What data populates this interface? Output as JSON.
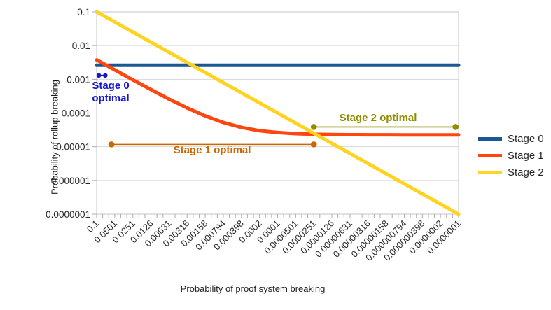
{
  "chart_data": {
    "type": "line",
    "title": "",
    "xlabel": "Probability of proof system breaking",
    "ylabel": "Probability of rollup breaking",
    "x_scale": "log",
    "y_scale": "log",
    "x_range": [
      0.1,
      1e-07
    ],
    "y_range": [
      0.1,
      1e-07
    ],
    "grid": "horizontal",
    "x_ticks": [
      "0.1",
      "0.0501",
      "0.0251",
      "0.0126",
      "0.00631",
      "0.00316",
      "0.00158",
      "0.000794",
      "0.000398",
      "0.0002",
      "0.0001",
      "0.0000501",
      "0.0000251",
      "0.0000126",
      "0.00000631",
      "0.00000316",
      "0.00000158",
      "0.000000794",
      "0.000000398",
      "0.0000002",
      "0.0000001"
    ],
    "y_ticks": [
      "0.1",
      "0.01",
      "0.001",
      "0.0001",
      "0.00001",
      "0.000001",
      "0.0000001"
    ],
    "series": [
      {
        "name": "Stage 0",
        "color": "#1a5795",
        "width": 5,
        "points": [
          [
            0.1,
            0.0026
          ],
          [
            1e-07,
            0.0026
          ]
        ]
      },
      {
        "name": "Stage 1",
        "color": "#fe4610",
        "width": 5,
        "points": [
          [
            0.1,
            0.00377
          ],
          [
            0.0501,
            0.0019
          ],
          [
            0.0251,
            0.00096
          ],
          [
            0.0126,
            0.000495
          ],
          [
            0.00631,
            0.000259
          ],
          [
            0.00316,
            0.000141
          ],
          [
            0.00158,
            8.18e-05
          ],
          [
            0.000794,
            5.23e-05
          ],
          [
            0.000398,
            3.74e-05
          ],
          [
            0.0002,
            2.99e-05
          ],
          [
            0.0001,
            2.63e-05
          ],
          [
            5.01e-05,
            2.44e-05
          ],
          [
            2.51e-05,
            2.34e-05
          ],
          [
            1.26e-05,
            2.3e-05
          ],
          [
            6.31e-06,
            2.27e-05
          ],
          [
            3.16e-06,
            2.26e-05
          ],
          [
            1.58e-06,
            2.26e-05
          ],
          [
            7.94e-07,
            2.25e-05
          ],
          [
            3.98e-07,
            2.25e-05
          ],
          [
            2e-07,
            2.25e-05
          ],
          [
            1e-07,
            2.25e-05
          ]
        ]
      },
      {
        "name": "Stage 2",
        "color": "#ffd320",
        "width": 5,
        "points": [
          [
            0.1,
            0.1
          ],
          [
            1e-07,
            1e-07
          ]
        ]
      }
    ],
    "annotations": [
      {
        "label": "Stage 0 optimal",
        "color": "#1515cd",
        "y": 0.0013,
        "x_from": 0.092,
        "x_to": 0.072,
        "dot_r": 3.3,
        "line_w": 2
      },
      {
        "label": "Stage 1 optimal",
        "color": "#cc6600",
        "y": 1.17e-05,
        "x_from": 0.057,
        "x_to": 2.51e-05,
        "dot_r": 4.3,
        "line_w": 1.6
      },
      {
        "label": "Stage 2 optimal",
        "color": "#8e8e00",
        "y": 3.85e-05,
        "x_from": 2.51e-05,
        "x_to": 1.12e-07,
        "dot_r": 4.3,
        "line_w": 1.6
      }
    ],
    "legend": {
      "position": "right",
      "items": [
        {
          "label": "Stage 0",
          "color": "#1a5795"
        },
        {
          "label": "Stage 1",
          "color": "#fe4610"
        },
        {
          "label": "Stage 2",
          "color": "#ffd320"
        }
      ]
    },
    "colors": {
      "gridline": "#d8d8d8",
      "plot_border": "#c6c6c6",
      "tick": "#adadad",
      "tick_text": "#262626"
    }
  }
}
